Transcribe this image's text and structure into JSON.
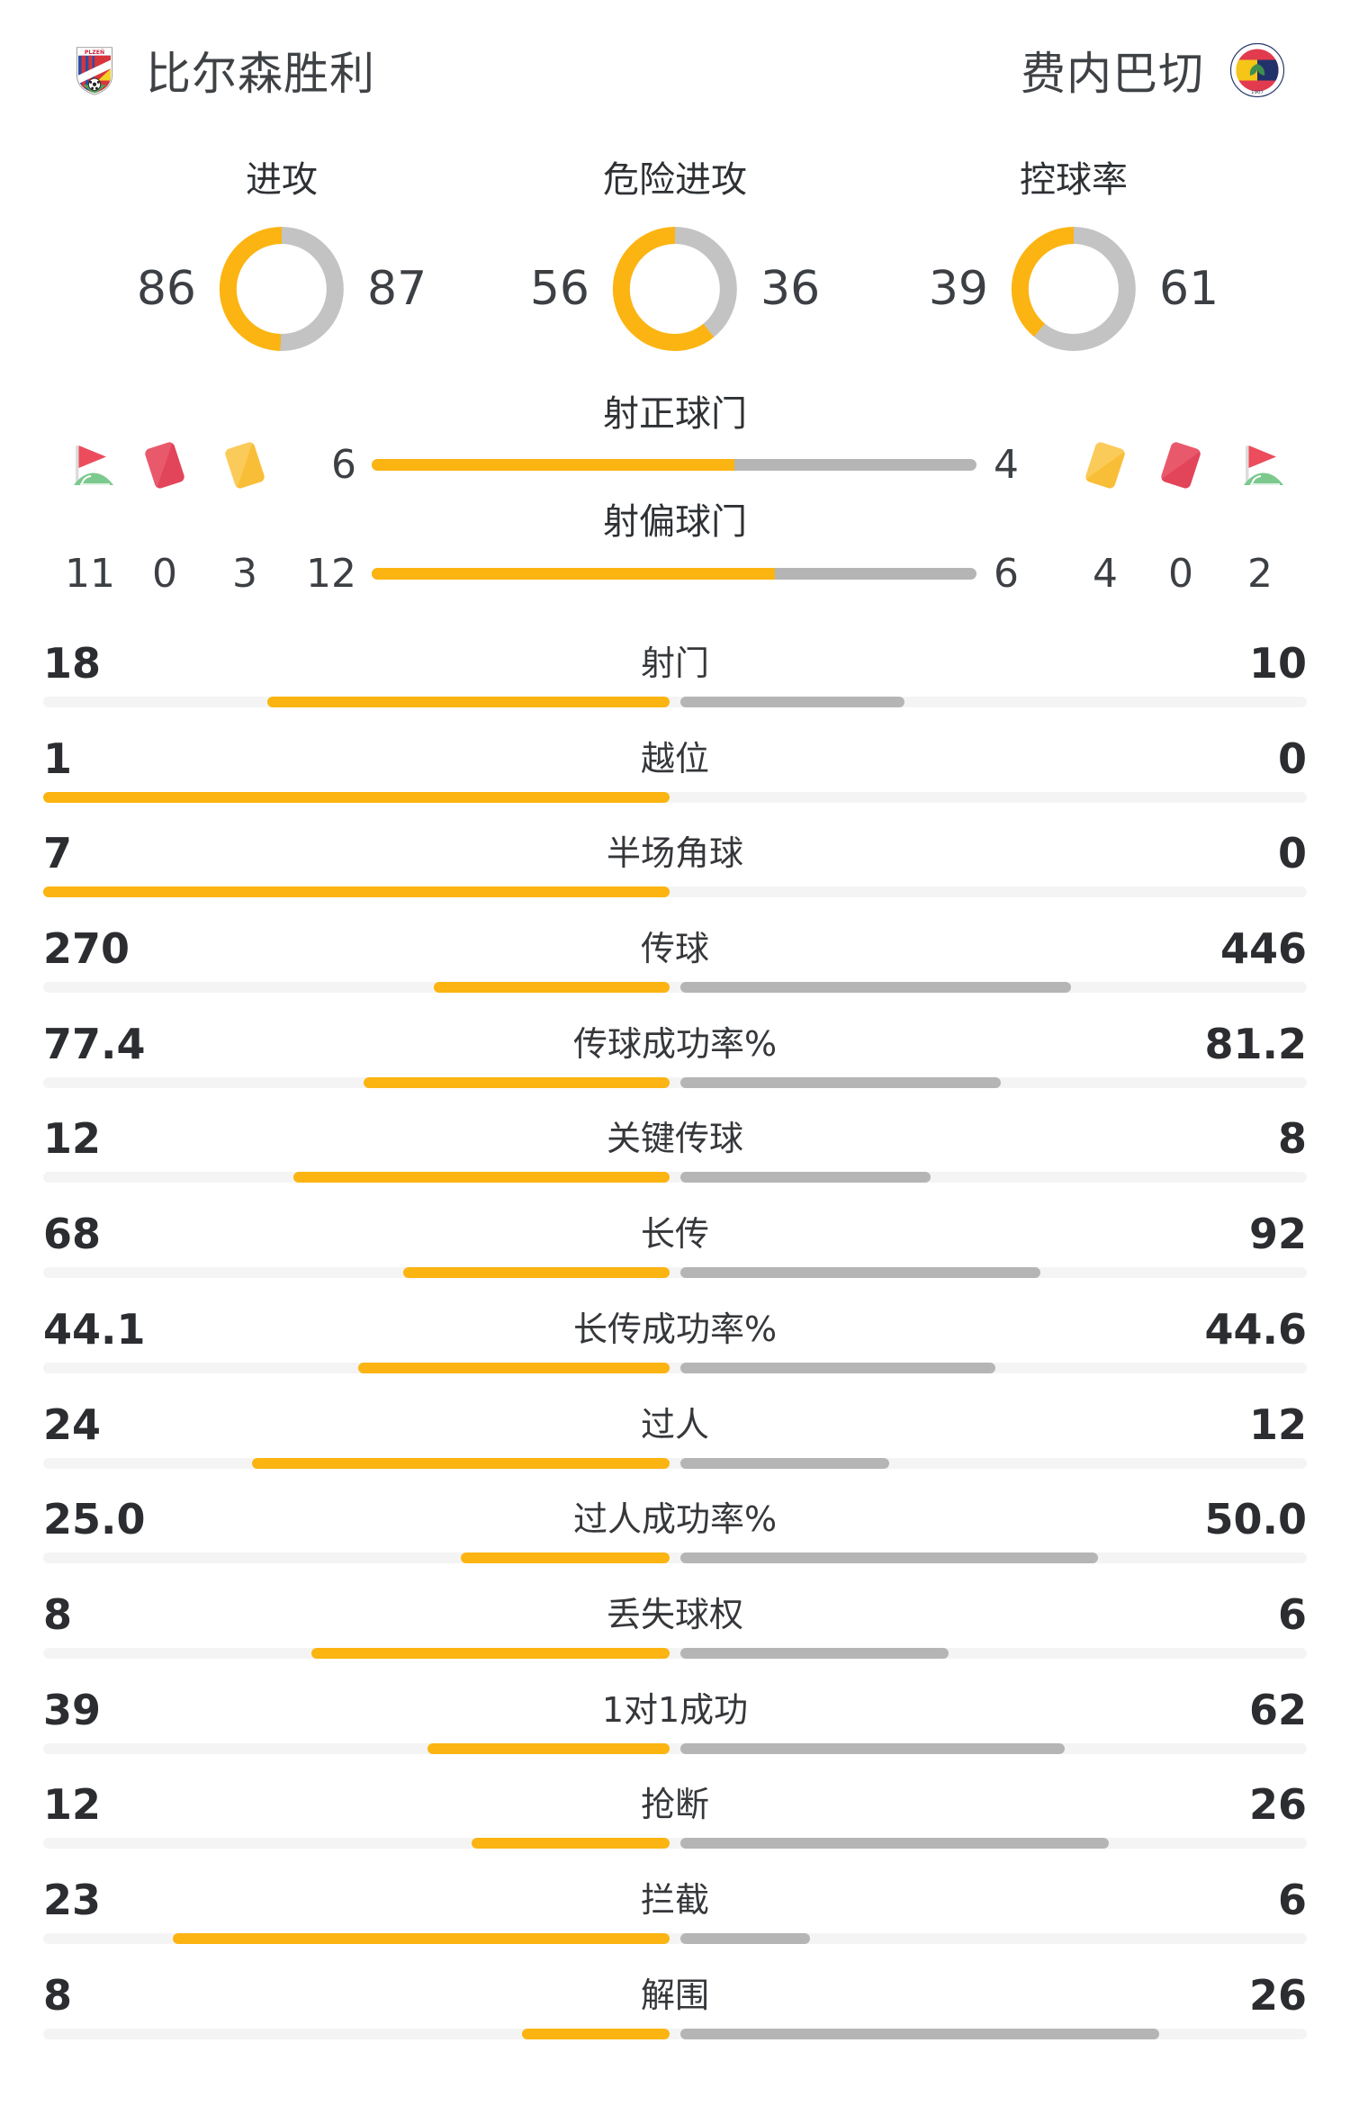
{
  "header": {
    "home_team": "比尔森胜利",
    "away_team": "费内巴切"
  },
  "colors": {
    "accent": "#FBB412",
    "bar_gray": "#B5B5B5",
    "donut_gray": "#C3C3C3",
    "track": "#F4F4F4",
    "red_card": "#E2445A",
    "yellow_card": "#F9BE37",
    "flag_green": "#7CC98E",
    "text_dark": "#2B2D30"
  },
  "chart_data": {
    "type": "bar",
    "teams": [
      "比尔森胜利",
      "费内巴切"
    ],
    "donuts": [
      {
        "label": "进攻",
        "home": 86,
        "away": 87
      },
      {
        "label": "危险进攻",
        "home": 56,
        "away": 36
      },
      {
        "label": "控球率",
        "home": 39,
        "away": 61
      }
    ],
    "shot_bars": [
      {
        "label": "射正球门",
        "home": 6,
        "away": 4
      },
      {
        "label": "射偏球门",
        "home": 12,
        "away": 6
      }
    ],
    "cards": {
      "corners": {
        "home": 11,
        "away": 2
      },
      "red_cards": {
        "home": 0,
        "away": 0
      },
      "yellow_cards": {
        "home": 3,
        "away": 4
      }
    },
    "rows": [
      {
        "label": "射门",
        "home": "18",
        "away": "10"
      },
      {
        "label": "越位",
        "home": "1",
        "away": "0"
      },
      {
        "label": "半场角球",
        "home": "7",
        "away": "0"
      },
      {
        "label": "传球",
        "home": "270",
        "away": "446"
      },
      {
        "label": "传球成功率%",
        "home": "77.4",
        "away": "81.2"
      },
      {
        "label": "关键传球",
        "home": "12",
        "away": "8"
      },
      {
        "label": "长传",
        "home": "68",
        "away": "92"
      },
      {
        "label": "长传成功率%",
        "home": "44.1",
        "away": "44.6"
      },
      {
        "label": "过人",
        "home": "24",
        "away": "12"
      },
      {
        "label": "过人成功率%",
        "home": "25.0",
        "away": "50.0"
      },
      {
        "label": "丢失球权",
        "home": "8",
        "away": "6"
      },
      {
        "label": "1对1成功",
        "home": "39",
        "away": "62"
      },
      {
        "label": "抢断",
        "home": "12",
        "away": "26"
      },
      {
        "label": "拦截",
        "home": "23",
        "away": "6"
      },
      {
        "label": "解围",
        "home": "8",
        "away": "26"
      }
    ]
  }
}
